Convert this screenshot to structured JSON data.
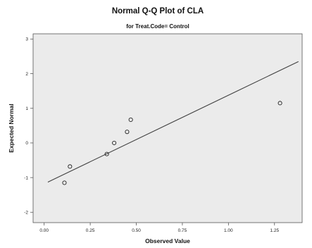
{
  "chart_data": {
    "type": "scatter",
    "title": "Normal Q-Q Plot of CLA",
    "subtitle": "for Treat.Code= Control",
    "xlabel": "Observed Value",
    "ylabel": "Expected Normal",
    "xlim": [
      -0.06,
      1.4
    ],
    "ylim": [
      -2.3,
      3.15
    ],
    "x_ticks": [
      "0.00",
      "0.25",
      "0.50",
      "0.75",
      "1.00",
      "1.25"
    ],
    "x_tick_values": [
      0,
      0.25,
      0.5,
      0.75,
      1.0,
      1.25
    ],
    "y_ticks": [
      "3",
      "2",
      "1",
      "0",
      "-1",
      "-2"
    ],
    "y_tick_values": [
      3,
      2,
      1,
      0,
      -1,
      -2
    ],
    "grid": false,
    "points": [
      {
        "x": 0.11,
        "y": -1.15
      },
      {
        "x": 0.14,
        "y": -0.68
      },
      {
        "x": 0.34,
        "y": -0.32
      },
      {
        "x": 0.38,
        "y": 0.0
      },
      {
        "x": 0.45,
        "y": 0.32
      },
      {
        "x": 0.47,
        "y": 0.67
      },
      {
        "x": 1.28,
        "y": 1.15
      }
    ],
    "reference_line": {
      "x1": 0.02,
      "y1": -1.13,
      "x2": 1.38,
      "y2": 2.35
    },
    "colors": {
      "plot_background": "#ebebeb",
      "line": "#404040",
      "marker": "#222222"
    }
  }
}
